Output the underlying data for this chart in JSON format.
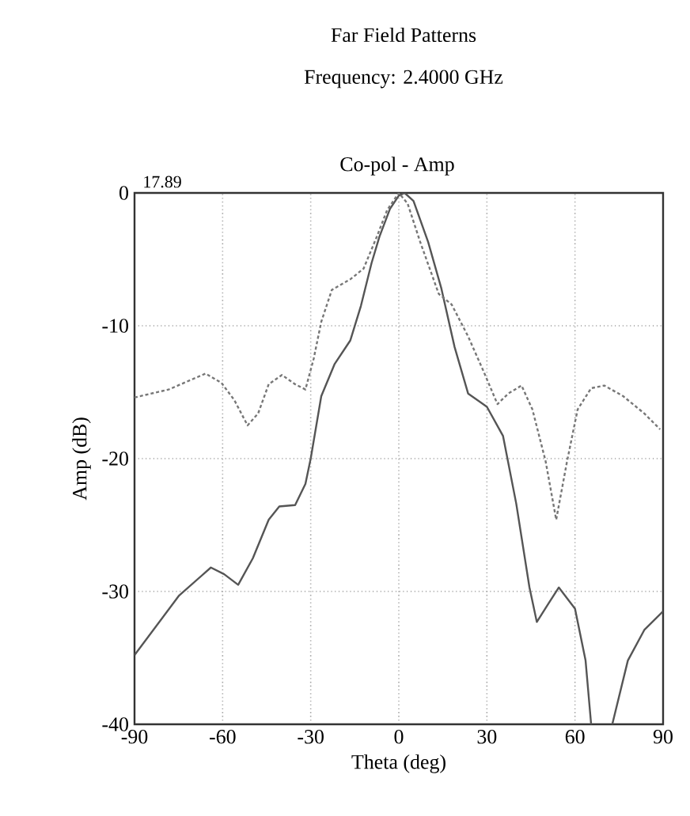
{
  "chart_data": {
    "type": "line",
    "title": "Far Field Patterns",
    "subtitle": "Frequency: 2.4000 GHz",
    "xlabel": "Theta (deg)",
    "ylabel": "Amp (dB)",
    "annotations": [
      "Co-pol - Amp",
      "17.89"
    ],
    "xlim": [
      -90,
      90
    ],
    "xticks": [
      -90,
      -60,
      -30,
      0,
      30,
      60,
      90
    ],
    "ylim": [
      -40,
      0
    ],
    "yticks": [
      -40,
      -30,
      -20,
      -10,
      0
    ],
    "grid": true,
    "marker": "none",
    "series": [
      {
        "color": "#555555",
        "line_style": "solid",
        "x": [
          -90,
          -74.8,
          -64,
          -59.5,
          -54.7,
          -49.7,
          -44.3,
          -40.7,
          -35.3,
          -31.8,
          -30,
          -26.4,
          -21.9,
          -16.5,
          -12.9,
          -9.3,
          -6.6,
          -3,
          0,
          2,
          5,
          10,
          14.5,
          19,
          23.6,
          30,
          35.5,
          40,
          44.5,
          47,
          51,
          54.5,
          60,
          63.6,
          65.5,
          69,
          72.7,
          78,
          83.6,
          90
        ],
        "values": [
          -34.8,
          -30.3,
          -28.2,
          -28.7,
          -29.5,
          -27.5,
          -24.6,
          -23.6,
          -23.5,
          -21.9,
          -20,
          -15.3,
          -12.9,
          -11.1,
          -8.5,
          -5.3,
          -3.3,
          -1.2,
          -0.2,
          0,
          -0.6,
          -3.7,
          -7.2,
          -11.6,
          -15.1,
          -16.1,
          -18.3,
          -23.4,
          -29.7,
          -32.3,
          -30.9,
          -29.7,
          -31.3,
          -35.2,
          -40,
          null,
          -40,
          -35.2,
          -32.9,
          -31.5
        ]
      },
      {
        "color": "#777777",
        "line_style": "dashed",
        "x": [
          -90,
          -78.4,
          -65.8,
          -60.4,
          -56,
          -51.5,
          -47.9,
          -44.3,
          -39.8,
          -35.3,
          -31.8,
          -29,
          -26.4,
          -22.8,
          -16.5,
          -12,
          -7.5,
          -4,
          0,
          3,
          7.3,
          13.6,
          18,
          23.6,
          29,
          33.6,
          37.3,
          41.8,
          45.5,
          50,
          53.6,
          57.3,
          60.9,
          65.5,
          70,
          76.4,
          83.6,
          89
        ],
        "values": [
          -15.4,
          -14.8,
          -13.6,
          -14.3,
          -15.6,
          -17.5,
          -16.6,
          -14.4,
          -13.7,
          -14.4,
          -14.8,
          -12.5,
          -9.7,
          -7.3,
          -6.5,
          -5.7,
          -3.3,
          -1.3,
          0,
          -0.8,
          -3.7,
          -7.6,
          -8.4,
          -10.8,
          -13.5,
          -15.9,
          -15.1,
          -14.5,
          -16.3,
          -20.2,
          -24.6,
          -20.2,
          -16.3,
          -14.7,
          -14.5,
          -15.3,
          -16.6,
          -17.8
        ]
      }
    ]
  }
}
